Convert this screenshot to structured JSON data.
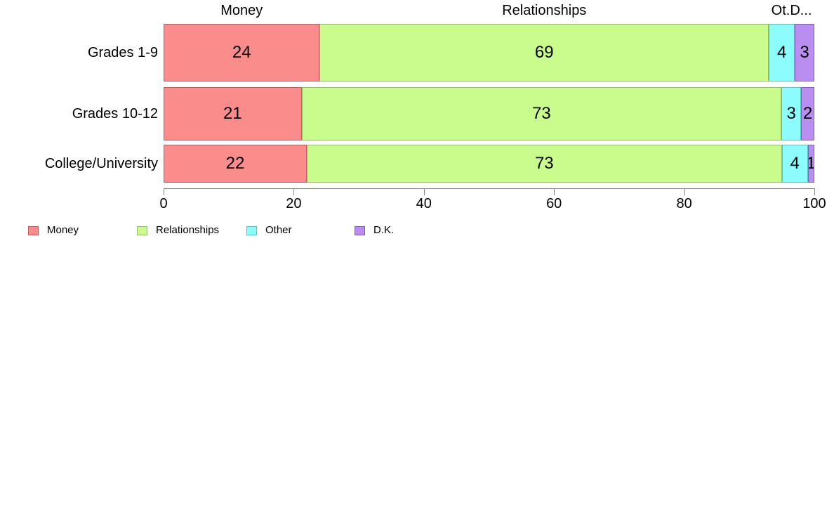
{
  "chart_data": {
    "type": "bar",
    "variant": "horizontal-stacked",
    "categories": [
      "Grades 1-9",
      "Grades 10-12",
      "College/University"
    ],
    "series": [
      {
        "name": "Money",
        "color": "#FB8C8C",
        "border_color": "#BE5E5E",
        "values": [
          24,
          21,
          22
        ]
      },
      {
        "name": "Relationships",
        "color": "#C9FC8C",
        "border_color": "#93C25C",
        "values": [
          69,
          73,
          73
        ]
      },
      {
        "name": "Other",
        "color": "#8DFCFC",
        "border_color": "#5CC2C2",
        "values": [
          4,
          3,
          4
        ]
      },
      {
        "name": "D.K.",
        "color": "#BA8DF1",
        "border_color": "#885CBE",
        "values": [
          3,
          2,
          1
        ]
      }
    ],
    "column_headers": [
      {
        "label": "Money",
        "center_pct": 12.0
      },
      {
        "label": "Relationships",
        "center_pct": 58.5
      },
      {
        "label": "Ot.D...",
        "center_pct": 96.5
      }
    ],
    "x_axis": {
      "min": 0,
      "max": 100,
      "tick_labels": [
        "0",
        "20",
        "40",
        "60",
        "80",
        "100"
      ],
      "tick_values": [
        0,
        20,
        40,
        60,
        80,
        100
      ]
    },
    "value_labels_shown": true,
    "grid": false,
    "legend": {
      "position": "bottom-left",
      "items": [
        "Money",
        "Relationships",
        "Other",
        "D.K."
      ]
    },
    "axis_color": "#878787",
    "text_color": "#000000",
    "background_color": "#FFFFFF"
  }
}
